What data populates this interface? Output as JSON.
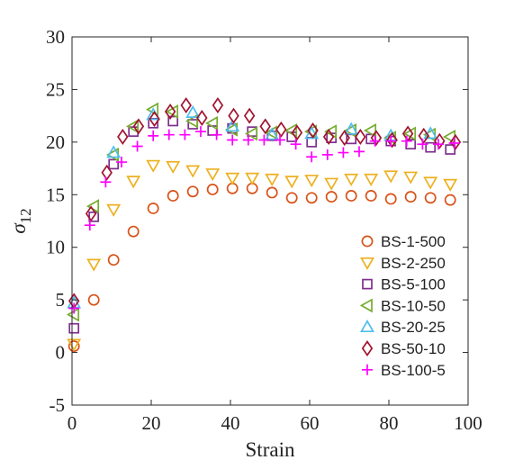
{
  "chart_data": {
    "type": "scatter",
    "xlabel": "Strain",
    "ylabel": "σ",
    "ylabel_subscript": "12",
    "xlim": [
      0,
      100
    ],
    "ylim": [
      -5,
      30
    ],
    "xticks": [
      0,
      20,
      40,
      60,
      80,
      100
    ],
    "yticks": [
      -5,
      0,
      5,
      10,
      15,
      20,
      25,
      30
    ],
    "grid": false,
    "legend_position": "lower-right",
    "series": [
      {
        "name": "BS-1-500",
        "marker": "circle",
        "color": "#D95319",
        "x": [
          0.5,
          5.5,
          10.5,
          15.5,
          20.5,
          25.5,
          30.5,
          35.5,
          40.5,
          45.5,
          50.5,
          55.5,
          60.5,
          65.5,
          70.5,
          75.5,
          80.5,
          85.5,
          90.5,
          95.5
        ],
        "y": [
          0.6,
          5.0,
          8.8,
          11.5,
          13.7,
          14.9,
          15.3,
          15.5,
          15.6,
          15.6,
          15.2,
          14.7,
          14.7,
          14.8,
          14.9,
          14.9,
          14.6,
          14.8,
          14.7,
          14.5
        ]
      },
      {
        "name": "BS-2-250",
        "marker": "triangle-down",
        "color": "#EDB120",
        "x": [
          0.5,
          5.5,
          10.5,
          15.5,
          20.5,
          25.5,
          30.5,
          35.5,
          40.5,
          45.5,
          50.5,
          55.5,
          60.5,
          65.5,
          70.5,
          75.5,
          80.5,
          85.5,
          90.5,
          95.5
        ],
        "y": [
          0.8,
          8.4,
          13.6,
          16.3,
          17.8,
          17.7,
          17.3,
          17.0,
          16.6,
          16.6,
          16.5,
          16.3,
          16.4,
          16.1,
          16.5,
          16.5,
          16.8,
          16.7,
          16.2,
          16.0
        ]
      },
      {
        "name": "BS-5-100",
        "marker": "square",
        "color": "#7E2F8E",
        "x": [
          0.5,
          5.5,
          10.5,
          15.5,
          20.5,
          25.5,
          30.5,
          35.5,
          40.5,
          45.5,
          50.5,
          55.5,
          60.5,
          65.5,
          70.5,
          75.5,
          80.5,
          85.5,
          90.5,
          95.5
        ],
        "y": [
          2.3,
          12.9,
          17.9,
          21.0,
          21.8,
          22.0,
          21.7,
          21.1,
          21.3,
          21.0,
          20.6,
          20.5,
          20.0,
          20.4,
          20.3,
          20.3,
          20.1,
          19.8,
          19.5,
          19.3
        ]
      },
      {
        "name": "BS-10-50",
        "marker": "triangle-left",
        "color": "#77AC30",
        "x": [
          0.5,
          5.5,
          10.5,
          15.5,
          20.5,
          25.5,
          30.5,
          35.5,
          40.5,
          45.5,
          50.5,
          55.5,
          60.5,
          65.5,
          70.5,
          75.5,
          80.5,
          85.5,
          90.5,
          95.5
        ],
        "y": [
          3.6,
          13.9,
          18.8,
          21.5,
          23.1,
          22.9,
          22.0,
          21.8,
          21.2,
          20.8,
          20.9,
          21.1,
          21.0,
          21.0,
          21.1,
          21.1,
          20.4,
          20.8,
          20.7,
          20.5
        ]
      },
      {
        "name": "BS-20-25",
        "marker": "triangle-up",
        "color": "#4DBEEE",
        "x": [
          0.5,
          10.5,
          20.5,
          30.5,
          40.5,
          50.5,
          60.5,
          70.5,
          80.5,
          90.5
        ],
        "y": [
          4.7,
          19.0,
          22.6,
          22.8,
          21.5,
          20.7,
          20.8,
          21.2,
          20.6,
          20.8
        ]
      },
      {
        "name": "BS-50-10",
        "marker": "diamond",
        "color": "#A2142F",
        "x": [
          0.5,
          4.8,
          8.8,
          12.8,
          16.8,
          20.8,
          24.8,
          28.8,
          32.8,
          36.8,
          40.8,
          44.8,
          48.8,
          52.8,
          56.8,
          60.8,
          64.8,
          68.8,
          72.8,
          76.8,
          80.8,
          84.8,
          88.8,
          92.8,
          96.8
        ],
        "y": [
          4.9,
          13.2,
          17.1,
          20.5,
          21.5,
          22.2,
          22.9,
          23.5,
          22.3,
          23.5,
          22.5,
          22.5,
          21.5,
          21.2,
          20.9,
          21.1,
          20.5,
          20.4,
          20.5,
          20.4,
          20.2,
          20.8,
          20.6,
          20.1,
          20.0
        ]
      },
      {
        "name": "BS-100-5",
        "marker": "plus",
        "color": "#FF00FF",
        "x": [
          0.5,
          4.5,
          8.5,
          12.5,
          16.5,
          20.5,
          24.5,
          28.5,
          32.5,
          36.5,
          40.5,
          44.5,
          48.5,
          52.5,
          56.5,
          60.5,
          64.5,
          68.5,
          72.5,
          76.5,
          80.5,
          84.5,
          88.5,
          92.5,
          96.5
        ],
        "y": [
          4.2,
          12.1,
          16.2,
          18.1,
          19.6,
          20.6,
          20.7,
          20.7,
          21.0,
          20.7,
          20.2,
          20.2,
          20.2,
          20.2,
          19.8,
          18.6,
          18.8,
          19.0,
          19.1,
          20.1,
          20.1,
          20.1,
          19.8,
          19.8,
          19.9
        ]
      }
    ]
  }
}
